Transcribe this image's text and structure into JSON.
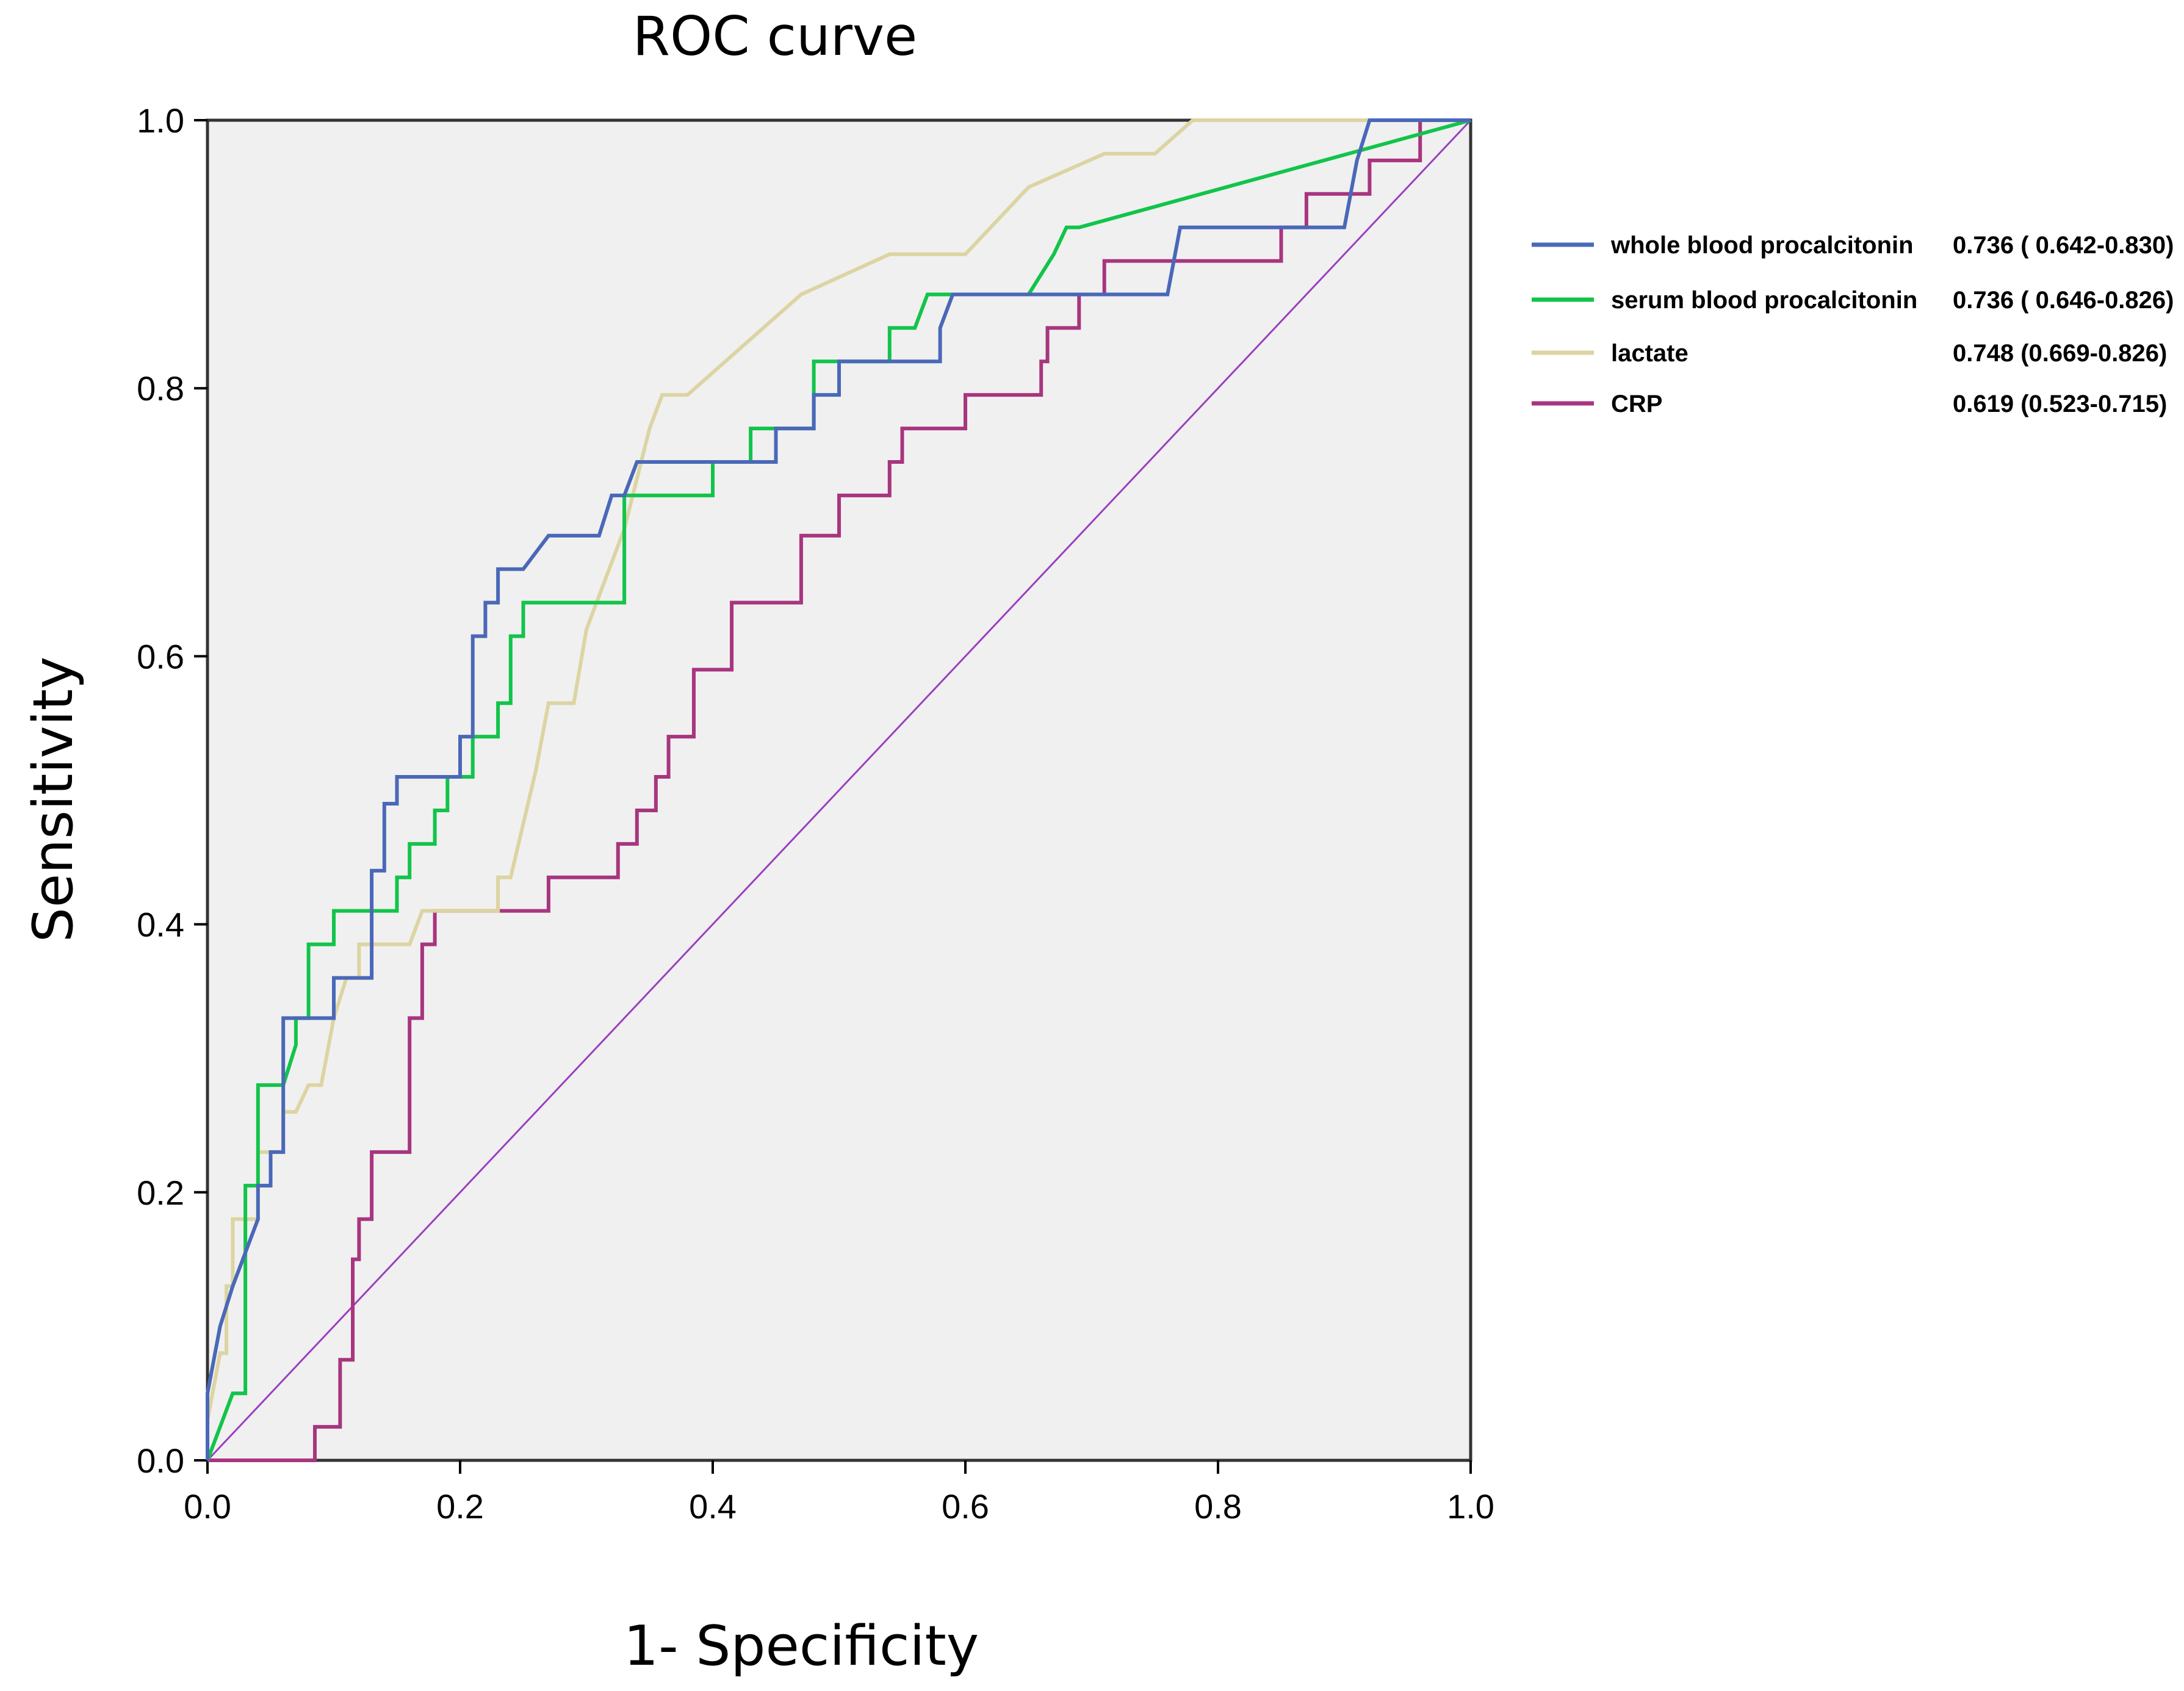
{
  "chart_data": {
    "type": "line",
    "title": "ROC curve",
    "xlabel": "1- Specificity",
    "ylabel": "Sensitivity",
    "xlim": [
      0,
      1
    ],
    "ylim": [
      0,
      1
    ],
    "xticks": [
      "0.0",
      "0.2",
      "0.4",
      "0.6",
      "0.8",
      "1.0"
    ],
    "yticks": [
      "0.0",
      "0.2",
      "0.4",
      "0.6",
      "0.8",
      "1.0"
    ],
    "legend_position": "right",
    "plot_background": "#f0f0f0",
    "series": [
      {
        "name": "whole blood procalcitonin",
        "stat": "0.736 ( 0.642-0.830)",
        "color": "#4a68b8",
        "points": [
          [
            0,
            0
          ],
          [
            0,
            0.05
          ],
          [
            0.01,
            0.1
          ],
          [
            0.02,
            0.13
          ],
          [
            0.04,
            0.18
          ],
          [
            0.04,
            0.205
          ],
          [
            0.05,
            0.205
          ],
          [
            0.05,
            0.23
          ],
          [
            0.06,
            0.23
          ],
          [
            0.06,
            0.26
          ],
          [
            0.06,
            0.33
          ],
          [
            0.1,
            0.33
          ],
          [
            0.1,
            0.36
          ],
          [
            0.13,
            0.36
          ],
          [
            0.13,
            0.44
          ],
          [
            0.14,
            0.44
          ],
          [
            0.14,
            0.49
          ],
          [
            0.15,
            0.49
          ],
          [
            0.15,
            0.51
          ],
          [
            0.19,
            0.51
          ],
          [
            0.2,
            0.51
          ],
          [
            0.2,
            0.54
          ],
          [
            0.21,
            0.54
          ],
          [
            0.21,
            0.615
          ],
          [
            0.22,
            0.615
          ],
          [
            0.22,
            0.64
          ],
          [
            0.23,
            0.64
          ],
          [
            0.23,
            0.665
          ],
          [
            0.25,
            0.665
          ],
          [
            0.27,
            0.69
          ],
          [
            0.31,
            0.69
          ],
          [
            0.32,
            0.72
          ],
          [
            0.33,
            0.72
          ],
          [
            0.34,
            0.745
          ],
          [
            0.38,
            0.745
          ],
          [
            0.45,
            0.745
          ],
          [
            0.45,
            0.77
          ],
          [
            0.48,
            0.77
          ],
          [
            0.48,
            0.795
          ],
          [
            0.5,
            0.795
          ],
          [
            0.5,
            0.82
          ],
          [
            0.58,
            0.82
          ],
          [
            0.58,
            0.845
          ],
          [
            0.59,
            0.87
          ],
          [
            0.76,
            0.87
          ],
          [
            0.77,
            0.92
          ],
          [
            0.9,
            0.92
          ],
          [
            0.91,
            0.97
          ],
          [
            0.92,
            1.0
          ],
          [
            1.0,
            1.0
          ]
        ]
      },
      {
        "name": "serum blood procalcitonin",
        "stat": "0.736 ( 0.646-0.826)",
        "color": "#12c44a",
        "points": [
          [
            0,
            0
          ],
          [
            0.02,
            0.05
          ],
          [
            0.03,
            0.05
          ],
          [
            0.03,
            0.205
          ],
          [
            0.04,
            0.205
          ],
          [
            0.04,
            0.28
          ],
          [
            0.06,
            0.28
          ],
          [
            0.07,
            0.31
          ],
          [
            0.07,
            0.33
          ],
          [
            0.08,
            0.33
          ],
          [
            0.08,
            0.385
          ],
          [
            0.1,
            0.385
          ],
          [
            0.1,
            0.41
          ],
          [
            0.15,
            0.41
          ],
          [
            0.15,
            0.435
          ],
          [
            0.16,
            0.435
          ],
          [
            0.16,
            0.46
          ],
          [
            0.18,
            0.46
          ],
          [
            0.18,
            0.485
          ],
          [
            0.19,
            0.485
          ],
          [
            0.19,
            0.51
          ],
          [
            0.21,
            0.51
          ],
          [
            0.21,
            0.54
          ],
          [
            0.23,
            0.54
          ],
          [
            0.23,
            0.565
          ],
          [
            0.24,
            0.565
          ],
          [
            0.24,
            0.615
          ],
          [
            0.25,
            0.615
          ],
          [
            0.25,
            0.64
          ],
          [
            0.33,
            0.64
          ],
          [
            0.33,
            0.72
          ],
          [
            0.4,
            0.72
          ],
          [
            0.4,
            0.745
          ],
          [
            0.43,
            0.745
          ],
          [
            0.43,
            0.77
          ],
          [
            0.48,
            0.77
          ],
          [
            0.48,
            0.82
          ],
          [
            0.54,
            0.82
          ],
          [
            0.54,
            0.845
          ],
          [
            0.56,
            0.845
          ],
          [
            0.57,
            0.87
          ],
          [
            0.65,
            0.87
          ],
          [
            0.67,
            0.9
          ],
          [
            0.68,
            0.92
          ],
          [
            0.69,
            0.92
          ],
          [
            1.0,
            1.0
          ]
        ]
      },
      {
        "name": "lactate",
        "stat": "0.748 (0.669-0.826)",
        "color": "#dcd4a2",
        "points": [
          [
            0,
            0
          ],
          [
            0,
            0.03
          ],
          [
            0.01,
            0.08
          ],
          [
            0.015,
            0.08
          ],
          [
            0.015,
            0.13
          ],
          [
            0.02,
            0.13
          ],
          [
            0.02,
            0.18
          ],
          [
            0.04,
            0.18
          ],
          [
            0.04,
            0.23
          ],
          [
            0.06,
            0.23
          ],
          [
            0.06,
            0.26
          ],
          [
            0.07,
            0.26
          ],
          [
            0.08,
            0.28
          ],
          [
            0.09,
            0.28
          ],
          [
            0.1,
            0.33
          ],
          [
            0.11,
            0.36
          ],
          [
            0.12,
            0.36
          ],
          [
            0.12,
            0.385
          ],
          [
            0.16,
            0.385
          ],
          [
            0.17,
            0.41
          ],
          [
            0.23,
            0.41
          ],
          [
            0.23,
            0.435
          ],
          [
            0.24,
            0.435
          ],
          [
            0.26,
            0.515
          ],
          [
            0.27,
            0.565
          ],
          [
            0.29,
            0.565
          ],
          [
            0.3,
            0.62
          ],
          [
            0.32,
            0.67
          ],
          [
            0.33,
            0.695
          ],
          [
            0.35,
            0.77
          ],
          [
            0.36,
            0.795
          ],
          [
            0.38,
            0.795
          ],
          [
            0.47,
            0.87
          ],
          [
            0.54,
            0.9
          ],
          [
            0.6,
            0.9
          ],
          [
            0.65,
            0.95
          ],
          [
            0.71,
            0.975
          ],
          [
            0.75,
            0.975
          ],
          [
            0.78,
            1.0
          ],
          [
            1.0,
            1.0
          ]
        ]
      },
      {
        "name": "CRP",
        "stat": "0.619 (0.523-0.715)",
        "color": "#a8357f",
        "points": [
          [
            0,
            0
          ],
          [
            0.085,
            0
          ],
          [
            0.085,
            0.025
          ],
          [
            0.105,
            0.025
          ],
          [
            0.105,
            0.075
          ],
          [
            0.115,
            0.075
          ],
          [
            0.115,
            0.15
          ],
          [
            0.12,
            0.15
          ],
          [
            0.12,
            0.18
          ],
          [
            0.13,
            0.18
          ],
          [
            0.13,
            0.23
          ],
          [
            0.16,
            0.23
          ],
          [
            0.16,
            0.33
          ],
          [
            0.17,
            0.33
          ],
          [
            0.17,
            0.385
          ],
          [
            0.18,
            0.385
          ],
          [
            0.18,
            0.41
          ],
          [
            0.27,
            0.41
          ],
          [
            0.27,
            0.435
          ],
          [
            0.325,
            0.435
          ],
          [
            0.325,
            0.46
          ],
          [
            0.34,
            0.46
          ],
          [
            0.34,
            0.485
          ],
          [
            0.355,
            0.485
          ],
          [
            0.355,
            0.51
          ],
          [
            0.365,
            0.51
          ],
          [
            0.365,
            0.54
          ],
          [
            0.385,
            0.54
          ],
          [
            0.385,
            0.59
          ],
          [
            0.415,
            0.59
          ],
          [
            0.415,
            0.64
          ],
          [
            0.47,
            0.64
          ],
          [
            0.47,
            0.69
          ],
          [
            0.5,
            0.69
          ],
          [
            0.5,
            0.72
          ],
          [
            0.54,
            0.72
          ],
          [
            0.54,
            0.745
          ],
          [
            0.55,
            0.745
          ],
          [
            0.55,
            0.77
          ],
          [
            0.6,
            0.77
          ],
          [
            0.6,
            0.795
          ],
          [
            0.66,
            0.795
          ],
          [
            0.66,
            0.82
          ],
          [
            0.665,
            0.82
          ],
          [
            0.665,
            0.845
          ],
          [
            0.69,
            0.845
          ],
          [
            0.69,
            0.87
          ],
          [
            0.71,
            0.87
          ],
          [
            0.71,
            0.895
          ],
          [
            0.85,
            0.895
          ],
          [
            0.85,
            0.92
          ],
          [
            0.87,
            0.92
          ],
          [
            0.87,
            0.945
          ],
          [
            0.92,
            0.945
          ],
          [
            0.92,
            0.97
          ],
          [
            0.96,
            0.97
          ],
          [
            0.96,
            1.0
          ],
          [
            1.0,
            1.0
          ]
        ]
      }
    ],
    "reference_line": {
      "color": "#9b3fbf",
      "points": [
        [
          0,
          0
        ],
        [
          1,
          1
        ]
      ]
    }
  }
}
